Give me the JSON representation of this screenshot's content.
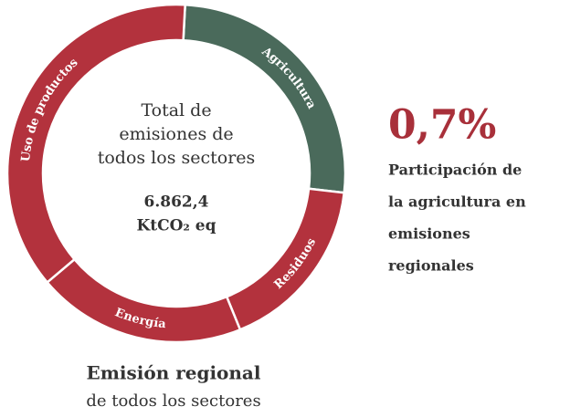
{
  "chart_data": {
    "type": "pie",
    "categories": [
      "Agricultura",
      "Residuos",
      "Energía",
      "Uso de productos"
    ],
    "values": [
      26,
      17,
      20,
      37
    ],
    "colors": [
      "#4a6a5b",
      "#b3323d",
      "#b3323d",
      "#b3323d"
    ],
    "start_angle": 3,
    "center_text": [
      "Total de",
      "emisiones de",
      "todos los sectores"
    ],
    "center_value": "6.862,4",
    "center_unit": "KtCO₂ eq",
    "highlight": "0,7%",
    "highlight_text": [
      "Participación de",
      "la agricultura  en",
      "emisiones",
      "regionales"
    ],
    "footer_title": "Emisión regional",
    "footer_subtitle": "de todos los sectores"
  }
}
